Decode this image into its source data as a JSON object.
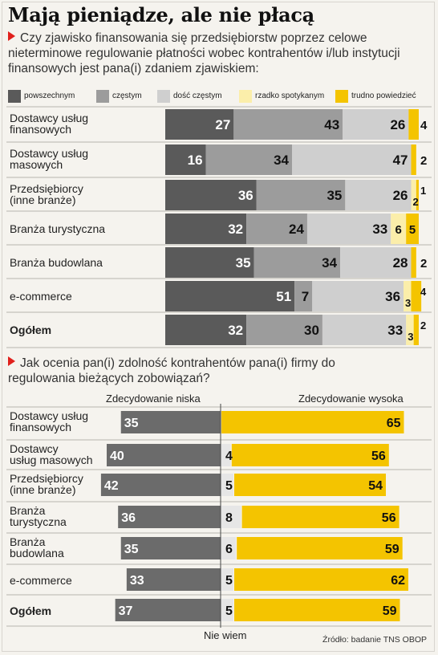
{
  "title": "Mają pieniądze, ale nie płacą",
  "question1": "Czy zjawisko finansowania się przedsiębiorstw poprzez celowe nieterminowe regulowanie płatności wobec kontrahentów i/lub instytucji finansowych jest pana(i) zdaniem zjawiskiem:",
  "question2": "Jak ocenia pan(i) zdolność kontrahentów pana(i) firmy do regulowania bieżących zobowiązań?",
  "source": "Źródło: badanie TNS OBOP",
  "colors": {
    "powszechnym": "#5a5a5a",
    "czestym": "#9c9c9c",
    "dosc_czestym": "#cfcfcf",
    "rzadko": "#fbeeaa",
    "trudno": "#f4c400",
    "accent": "#e0201c"
  },
  "legend": [
    "powszechnym",
    "częstym",
    "dość częstym",
    "rzadko spotykanym",
    "trudno powiedzieć"
  ],
  "chart_data": [
    {
      "type": "bar",
      "stacked": true,
      "orientation": "horizontal",
      "categories": [
        [
          "Dostawcy usług",
          "finansowych"
        ],
        [
          "Dostawcy usług",
          "masowych"
        ],
        [
          "Przedsiębiorcy",
          "(inne branże)"
        ],
        [
          "Branża turystyczna"
        ],
        [
          "Branża budowlana"
        ],
        [
          "e-commerce"
        ],
        [
          "Ogółem"
        ]
      ],
      "series": [
        {
          "name": "powszechnym",
          "values": [
            27,
            16,
            36,
            32,
            35,
            51,
            32
          ]
        },
        {
          "name": "częstym",
          "values": [
            43,
            34,
            35,
            24,
            34,
            7,
            30
          ]
        },
        {
          "name": "dość częstym",
          "values": [
            26,
            47,
            26,
            33,
            28,
            36,
            33
          ]
        },
        {
          "name": "rzadko spotykanym",
          "values": [
            0,
            0,
            2,
            6,
            0,
            3,
            3
          ]
        },
        {
          "name": "trudno powiedzieć",
          "values": [
            4,
            2,
            1,
            5,
            2,
            4,
            2
          ]
        }
      ],
      "xlim": [
        0,
        100
      ]
    },
    {
      "type": "bar",
      "diverging": true,
      "orientation": "horizontal",
      "categories": [
        [
          "Dostawcy usług",
          "finansowych"
        ],
        [
          "Dostawcy",
          "usług masowych"
        ],
        [
          "Przedsiębiorcy",
          "(inne branże)"
        ],
        [
          "Branża",
          "turystyczna"
        ],
        [
          "Branża",
          "budowlana"
        ],
        [
          "e-commerce"
        ],
        [
          "Ogółem"
        ]
      ],
      "left_label": "Zdecydowanie niska",
      "right_label": "Zdecydowanie wysoka",
      "center_label": "Nie wiem",
      "series": [
        {
          "name": "Zdecydowanie niska",
          "values": [
            35,
            40,
            42,
            36,
            35,
            33,
            37
          ]
        },
        {
          "name": "Nie wiem",
          "values": [
            0,
            4,
            5,
            8,
            6,
            5,
            5
          ]
        },
        {
          "name": "Zdecydowanie wysoka",
          "values": [
            65,
            56,
            54,
            56,
            59,
            62,
            59
          ]
        }
      ]
    }
  ]
}
